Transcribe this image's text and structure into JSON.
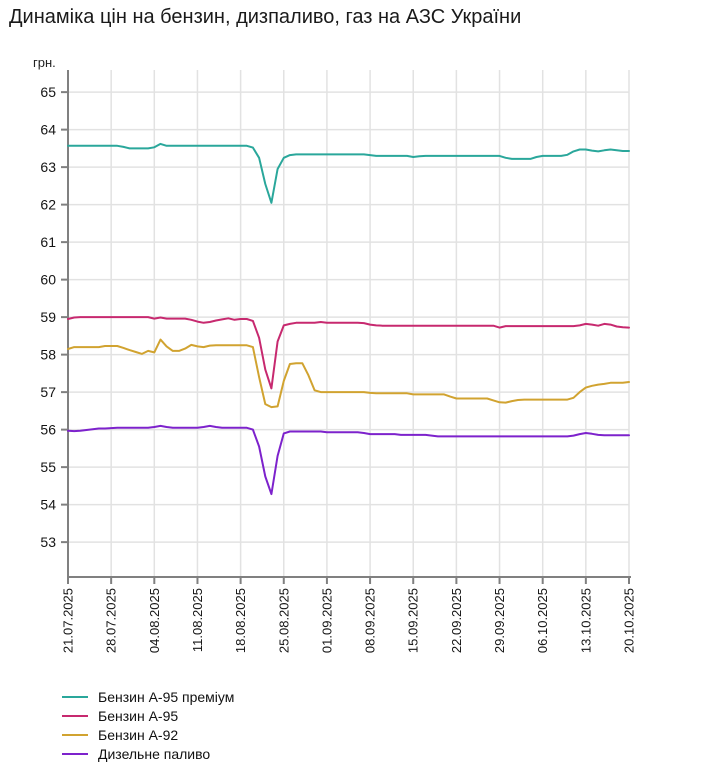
{
  "page": {
    "title": "Динаміка цін на бензин, дизпаливо, газ на АЗС України"
  },
  "chart_data": {
    "type": "line",
    "title": "Динаміка цін на бензин, дизпаливо, газ на АЗС України",
    "ylabel": "грн.",
    "xlabel": "",
    "grid": true,
    "legend_position": "bottom-left",
    "ylim": [
      52.07,
      65.59
    ],
    "y_ticks": [
      53,
      54,
      55,
      56,
      57,
      58,
      59,
      60,
      61,
      62,
      63,
      64,
      65
    ],
    "x_unit": "days, daily points starting 21.07.2025",
    "x_tick_days": [
      0,
      7,
      14,
      21,
      28,
      35,
      42,
      49,
      56,
      63,
      70,
      77,
      84,
      91
    ],
    "x_tick_labels": [
      "21.07.2025",
      "28.07.2025",
      "04.08.2025",
      "11.08.2025",
      "18.08.2025",
      "25.08.2025",
      "01.09.2025",
      "08.09.2025",
      "15.09.2025",
      "22.09.2025",
      "29.09.2025",
      "06.10.2025",
      "13.10.2025",
      "20.10.2025"
    ],
    "axis_color": "#808080",
    "gridline_color": "#e2e2e2",
    "series": [
      {
        "name": "Бензин А-95 преміум",
        "slug": "a95-premium",
        "color": "#2aa79b",
        "values": [
          63.57,
          63.57,
          63.57,
          63.57,
          63.57,
          63.57,
          63.57,
          63.57,
          63.57,
          63.54,
          63.5,
          63.5,
          63.5,
          63.5,
          63.53,
          63.62,
          63.57,
          63.57,
          63.57,
          63.57,
          63.57,
          63.57,
          63.57,
          63.57,
          63.57,
          63.57,
          63.57,
          63.57,
          63.57,
          63.57,
          63.52,
          63.25,
          62.55,
          62.05,
          62.95,
          63.25,
          63.32,
          63.34,
          63.34,
          63.34,
          63.34,
          63.34,
          63.34,
          63.34,
          63.34,
          63.34,
          63.34,
          63.34,
          63.34,
          63.32,
          63.3,
          63.3,
          63.3,
          63.3,
          63.3,
          63.3,
          63.27,
          63.29,
          63.3,
          63.3,
          63.3,
          63.3,
          63.3,
          63.3,
          63.3,
          63.3,
          63.3,
          63.3,
          63.3,
          63.3,
          63.3,
          63.25,
          63.22,
          63.22,
          63.22,
          63.22,
          63.27,
          63.3,
          63.3,
          63.3,
          63.3,
          63.33,
          63.42,
          63.47,
          63.47,
          63.44,
          63.42,
          63.45,
          63.47,
          63.45,
          63.43,
          63.43
        ]
      },
      {
        "name": "Бензин А-95",
        "slug": "a95",
        "color": "#c7296f",
        "values": [
          58.95,
          58.99,
          59.0,
          59.0,
          59.0,
          59.0,
          59.0,
          59.0,
          59.0,
          59.0,
          59.0,
          59.0,
          59.0,
          59.0,
          58.96,
          58.99,
          58.96,
          58.96,
          58.96,
          58.96,
          58.93,
          58.88,
          58.85,
          58.87,
          58.91,
          58.94,
          58.97,
          58.93,
          58.95,
          58.95,
          58.9,
          58.45,
          57.6,
          57.1,
          58.35,
          58.78,
          58.82,
          58.85,
          58.85,
          58.85,
          58.85,
          58.87,
          58.85,
          58.85,
          58.85,
          58.85,
          58.85,
          58.85,
          58.84,
          58.8,
          58.78,
          58.77,
          58.77,
          58.77,
          58.77,
          58.77,
          58.77,
          58.77,
          58.77,
          58.77,
          58.77,
          58.77,
          58.77,
          58.77,
          58.77,
          58.77,
          58.77,
          58.77,
          58.77,
          58.77,
          58.72,
          58.76,
          58.76,
          58.76,
          58.76,
          58.76,
          58.76,
          58.76,
          58.76,
          58.76,
          58.76,
          58.76,
          58.76,
          58.78,
          58.82,
          58.8,
          58.77,
          58.82,
          58.8,
          58.75,
          58.73,
          58.72
        ]
      },
      {
        "name": "Бензин А-92",
        "slug": "a92",
        "color": "#d1a330",
        "values": [
          58.15,
          58.2,
          58.2,
          58.2,
          58.2,
          58.2,
          58.23,
          58.23,
          58.23,
          58.18,
          58.12,
          58.07,
          58.02,
          58.1,
          58.06,
          58.4,
          58.22,
          58.1,
          58.1,
          58.16,
          58.26,
          58.22,
          58.2,
          58.24,
          58.25,
          58.25,
          58.25,
          58.25,
          58.25,
          58.25,
          58.2,
          57.4,
          56.68,
          56.6,
          56.62,
          57.3,
          57.75,
          57.77,
          57.77,
          57.45,
          57.05,
          57.0,
          57.0,
          57.0,
          57.0,
          57.0,
          57.0,
          57.0,
          57.0,
          56.98,
          56.97,
          56.97,
          56.97,
          56.97,
          56.97,
          56.97,
          56.94,
          56.94,
          56.94,
          56.94,
          56.94,
          56.94,
          56.88,
          56.83,
          56.83,
          56.83,
          56.83,
          56.83,
          56.83,
          56.78,
          56.73,
          56.72,
          56.76,
          56.79,
          56.8,
          56.8,
          56.8,
          56.8,
          56.8,
          56.8,
          56.8,
          56.8,
          56.85,
          57.0,
          57.12,
          57.17,
          57.2,
          57.22,
          57.25,
          57.25,
          57.25,
          57.27
        ]
      },
      {
        "name": "Дизельне паливо",
        "slug": "diesel",
        "color": "#7d22cc",
        "values": [
          55.97,
          55.96,
          55.97,
          55.99,
          56.01,
          56.03,
          56.03,
          56.04,
          56.05,
          56.05,
          56.05,
          56.05,
          56.05,
          56.05,
          56.07,
          56.1,
          56.07,
          56.05,
          56.05,
          56.05,
          56.05,
          56.05,
          56.07,
          56.1,
          56.07,
          56.05,
          56.05,
          56.05,
          56.05,
          56.05,
          56.0,
          55.55,
          54.75,
          54.28,
          55.3,
          55.9,
          55.95,
          55.95,
          55.95,
          55.95,
          55.95,
          55.95,
          55.93,
          55.93,
          55.93,
          55.93,
          55.93,
          55.93,
          55.91,
          55.88,
          55.88,
          55.88,
          55.88,
          55.88,
          55.86,
          55.86,
          55.86,
          55.86,
          55.86,
          55.84,
          55.82,
          55.82,
          55.82,
          55.82,
          55.82,
          55.82,
          55.82,
          55.82,
          55.82,
          55.82,
          55.82,
          55.82,
          55.82,
          55.82,
          55.82,
          55.82,
          55.82,
          55.82,
          55.82,
          55.82,
          55.82,
          55.82,
          55.84,
          55.88,
          55.91,
          55.89,
          55.86,
          55.85,
          55.85,
          55.85,
          55.85,
          55.85
        ]
      }
    ]
  }
}
